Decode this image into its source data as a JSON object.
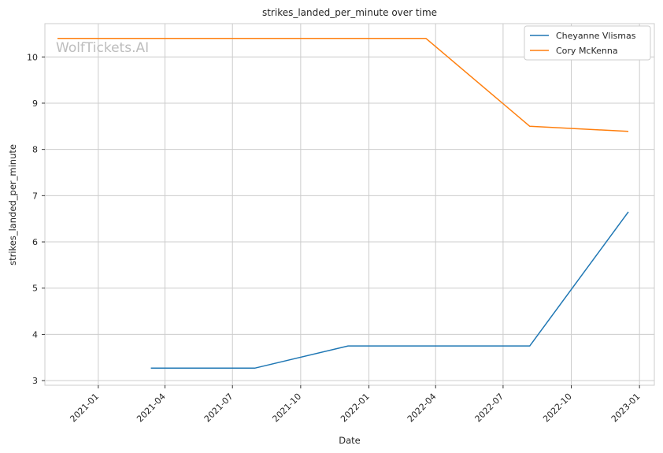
{
  "chart_data": {
    "type": "line",
    "title": "strikes_landed_per_minute over time",
    "xlabel": "Date",
    "ylabel": "strikes_landed_per_minute",
    "watermark": "WolfTickets.AI",
    "x_type": "date",
    "xlim": [
      "2020-10-21",
      "2023-01-21"
    ],
    "ylim": [
      2.9,
      10.72
    ],
    "x_ticks": [
      {
        "date": "2021-01-01",
        "label": "2021-01"
      },
      {
        "date": "2021-04-01",
        "label": "2021-04"
      },
      {
        "date": "2021-07-01",
        "label": "2021-07"
      },
      {
        "date": "2021-10-01",
        "label": "2021-10"
      },
      {
        "date": "2022-01-01",
        "label": "2022-01"
      },
      {
        "date": "2022-04-01",
        "label": "2022-04"
      },
      {
        "date": "2022-07-01",
        "label": "2022-07"
      },
      {
        "date": "2022-10-01",
        "label": "2022-10"
      },
      {
        "date": "2023-01-01",
        "label": "2023-01"
      }
    ],
    "y_ticks": [
      3,
      4,
      5,
      6,
      7,
      8,
      9,
      10
    ],
    "grid": true,
    "legend": "top-right",
    "series": [
      {
        "name": "Cheyanne Vlismas",
        "color": "#1f77b4",
        "points": [
          {
            "x": "2021-03-13",
            "y": 3.27
          },
          {
            "x": "2021-07-31",
            "y": 3.27
          },
          {
            "x": "2021-12-04",
            "y": 3.75
          },
          {
            "x": "2022-08-06",
            "y": 3.75
          },
          {
            "x": "2022-12-17",
            "y": 6.65
          }
        ]
      },
      {
        "name": "Cory McKenna",
        "color": "#ff7f0e",
        "points": [
          {
            "x": "2020-11-07",
            "y": 10.4
          },
          {
            "x": "2022-03-19",
            "y": 10.4
          },
          {
            "x": "2022-08-06",
            "y": 8.5
          },
          {
            "x": "2022-12-17",
            "y": 8.39
          }
        ]
      }
    ]
  }
}
